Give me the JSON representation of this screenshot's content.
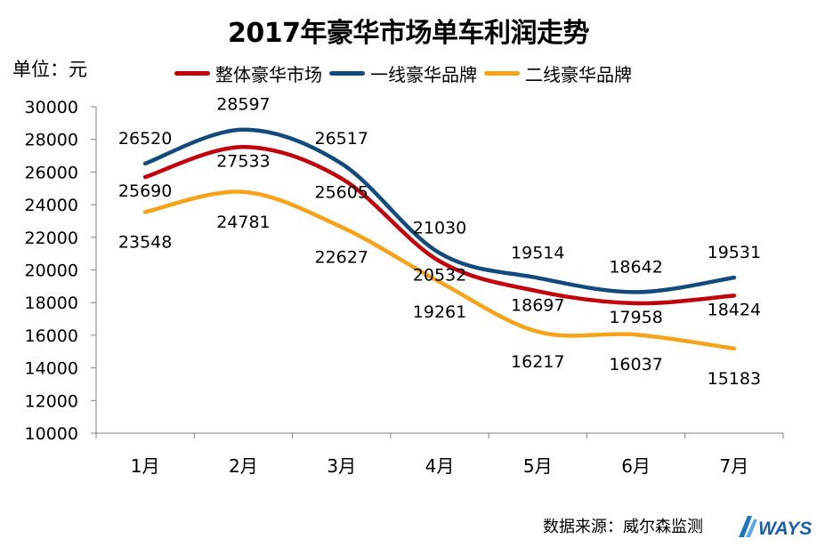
{
  "source_label": "数据来源：威尔森监测",
  "brand_logo_text": "WAYS",
  "chart_data": {
    "type": "line",
    "title": "2017年豪华市场单车利润走势",
    "y_unit": "单位：元",
    "categories": [
      "1月",
      "2月",
      "3月",
      "4月",
      "5月",
      "6月",
      "7月"
    ],
    "ylim": [
      10000,
      30000
    ],
    "yticks": [
      10000,
      12000,
      14000,
      16000,
      18000,
      20000,
      22000,
      24000,
      26000,
      28000,
      30000
    ],
    "grid": false,
    "legend_position": "top",
    "smooth": true,
    "series": [
      {
        "name": "整体豪华市场",
        "color": "#c0000b",
        "values": [
          25690,
          27533,
          25605,
          20532,
          18697,
          17958,
          18424
        ]
      },
      {
        "name": "一线豪华品牌",
        "color": "#114a7b",
        "values": [
          26520,
          28597,
          26517,
          21030,
          19514,
          18642,
          19531
        ]
      },
      {
        "name": "二线豪华品牌",
        "color": "#f6a31a",
        "values": [
          23548,
          24781,
          22627,
          19261,
          16217,
          16037,
          15183
        ]
      }
    ]
  }
}
